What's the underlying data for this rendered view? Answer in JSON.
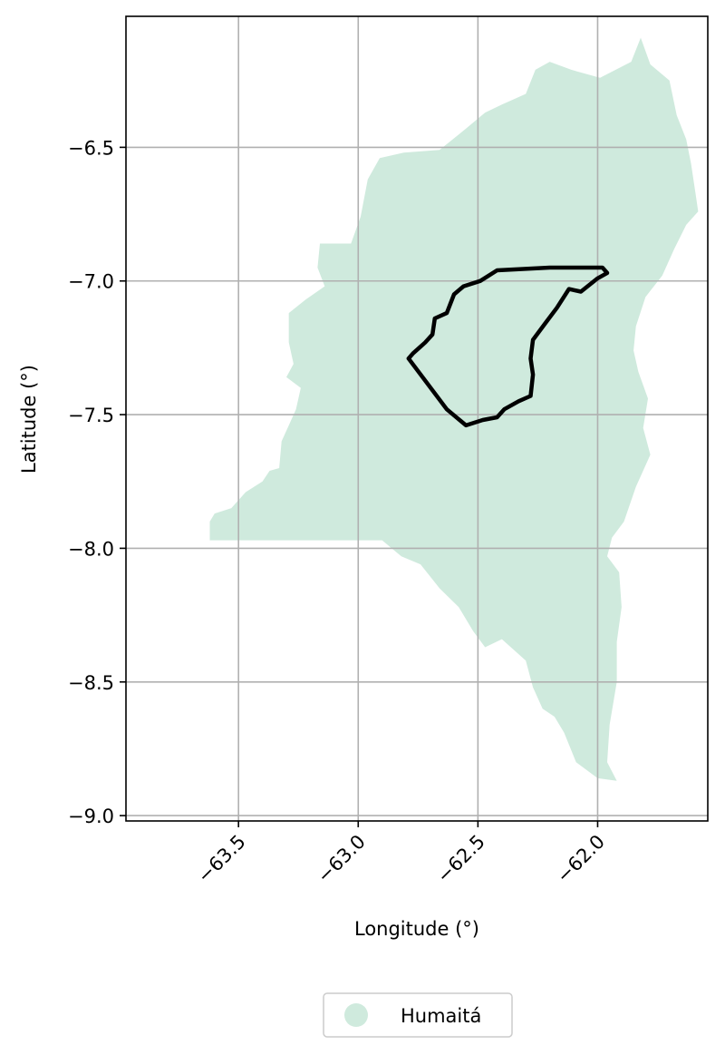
{
  "chart_data": {
    "type": "map",
    "xlabel": "Longitude (°)",
    "ylabel": "Latitude (°)",
    "xlim": [
      -63.97,
      -61.54
    ],
    "ylim": [
      -9.02,
      -6.01
    ],
    "xticks": [
      -63.5,
      -63.0,
      -62.5,
      -62.0
    ],
    "xtick_labels": [
      "−63.5",
      "−63.0",
      "−62.5",
      "−62.0"
    ],
    "yticks": [
      -6.5,
      -7.0,
      -7.5,
      -8.0,
      -8.5,
      -9.0
    ],
    "ytick_labels": [
      "−6.5",
      "−7.0",
      "−7.5",
      "−8.0",
      "−8.5",
      "−9.0"
    ],
    "grid": true,
    "legend": {
      "placement": "bottom-center, below plot",
      "entries": [
        {
          "label": "Humaitá",
          "color": "#cfeadd"
        }
      ]
    },
    "region": {
      "name": "Humaitá",
      "fill": "#cfeadd",
      "outline_lonlat": [
        [
          -63.6,
          -7.87
        ],
        [
          -63.53,
          -7.85
        ],
        [
          -63.47,
          -7.79
        ],
        [
          -63.4,
          -7.75
        ],
        [
          -63.37,
          -7.71
        ],
        [
          -63.33,
          -7.7
        ],
        [
          -63.32,
          -7.6
        ],
        [
          -63.29,
          -7.54
        ],
        [
          -63.26,
          -7.48
        ],
        [
          -63.24,
          -7.4
        ],
        [
          -63.3,
          -7.36
        ],
        [
          -63.27,
          -7.31
        ],
        [
          -63.29,
          -7.23
        ],
        [
          -63.29,
          -7.12
        ],
        [
          -63.22,
          -7.07
        ],
        [
          -63.14,
          -7.02
        ],
        [
          -63.17,
          -6.95
        ],
        [
          -63.16,
          -6.86
        ],
        [
          -63.03,
          -6.86
        ],
        [
          -62.99,
          -6.76
        ],
        [
          -62.96,
          -6.62
        ],
        [
          -62.91,
          -6.54
        ],
        [
          -62.81,
          -6.52
        ],
        [
          -62.66,
          -6.51
        ],
        [
          -62.55,
          -6.43
        ],
        [
          -62.47,
          -6.37
        ],
        [
          -62.4,
          -6.34
        ],
        [
          -62.3,
          -6.3
        ],
        [
          -62.26,
          -6.21
        ],
        [
          -62.2,
          -6.18
        ],
        [
          -62.11,
          -6.21
        ],
        [
          -61.99,
          -6.24
        ],
        [
          -61.86,
          -6.18
        ],
        [
          -61.82,
          -6.09
        ],
        [
          -61.78,
          -6.19
        ],
        [
          -61.7,
          -6.25
        ],
        [
          -61.67,
          -6.38
        ],
        [
          -61.63,
          -6.47
        ],
        [
          -61.61,
          -6.56
        ],
        [
          -61.59,
          -6.68
        ],
        [
          -61.58,
          -6.74
        ],
        [
          -61.63,
          -6.79
        ],
        [
          -61.68,
          -6.88
        ],
        [
          -61.73,
          -6.98
        ],
        [
          -61.8,
          -7.06
        ],
        [
          -61.84,
          -7.17
        ],
        [
          -61.85,
          -7.26
        ],
        [
          -61.83,
          -7.34
        ],
        [
          -61.79,
          -7.44
        ],
        [
          -61.81,
          -7.55
        ],
        [
          -61.78,
          -7.65
        ],
        [
          -61.84,
          -7.77
        ],
        [
          -61.89,
          -7.9
        ],
        [
          -61.94,
          -7.96
        ],
        [
          -61.96,
          -8.03
        ],
        [
          -61.91,
          -8.09
        ],
        [
          -61.9,
          -8.22
        ],
        [
          -61.92,
          -8.35
        ],
        [
          -61.92,
          -8.5
        ],
        [
          -61.95,
          -8.66
        ],
        [
          -61.96,
          -8.8
        ],
        [
          -61.92,
          -8.87
        ],
        [
          -62.0,
          -8.86
        ],
        [
          -62.09,
          -8.8
        ],
        [
          -62.14,
          -8.69
        ],
        [
          -62.18,
          -8.63
        ],
        [
          -62.23,
          -8.6
        ],
        [
          -62.27,
          -8.52
        ],
        [
          -62.3,
          -8.42
        ],
        [
          -62.4,
          -8.34
        ],
        [
          -62.47,
          -8.37
        ],
        [
          -62.52,
          -8.31
        ],
        [
          -62.58,
          -8.22
        ],
        [
          -62.66,
          -8.15
        ],
        [
          -62.74,
          -8.06
        ],
        [
          -62.82,
          -8.03
        ],
        [
          -62.9,
          -7.97
        ],
        [
          -63.62,
          -7.97
        ],
        [
          -63.62,
          -7.9
        ]
      ]
    },
    "boundary": {
      "stroke": "#000000",
      "outline_lonlat": [
        [
          -62.79,
          -7.29
        ],
        [
          -62.77,
          -7.27
        ],
        [
          -62.72,
          -7.23
        ],
        [
          -62.69,
          -7.2
        ],
        [
          -62.68,
          -7.14
        ],
        [
          -62.63,
          -7.12
        ],
        [
          -62.6,
          -7.05
        ],
        [
          -62.56,
          -7.02
        ],
        [
          -62.49,
          -7.0
        ],
        [
          -62.42,
          -6.96
        ],
        [
          -62.2,
          -6.95
        ],
        [
          -61.98,
          -6.95
        ],
        [
          -61.96,
          -6.97
        ],
        [
          -62.0,
          -6.99
        ],
        [
          -62.07,
          -7.04
        ],
        [
          -62.12,
          -7.03
        ],
        [
          -62.17,
          -7.1
        ],
        [
          -62.22,
          -7.16
        ],
        [
          -62.27,
          -7.22
        ],
        [
          -62.28,
          -7.29
        ],
        [
          -62.27,
          -7.35
        ],
        [
          -62.28,
          -7.43
        ],
        [
          -62.33,
          -7.45
        ],
        [
          -62.39,
          -7.48
        ],
        [
          -62.42,
          -7.51
        ],
        [
          -62.48,
          -7.52
        ],
        [
          -62.55,
          -7.54
        ],
        [
          -62.63,
          -7.48
        ],
        [
          -62.79,
          -7.29
        ]
      ]
    }
  }
}
